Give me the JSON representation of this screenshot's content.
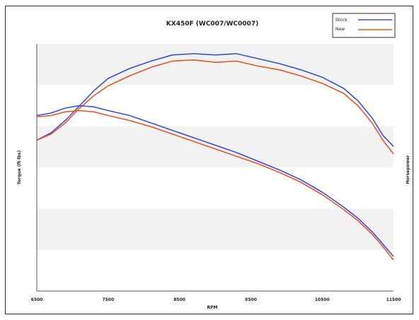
{
  "chart_data": {
    "type": "line",
    "title": "KX450F (WC007/WC0007)",
    "xlabel": "RPM",
    "ylabel_left": "Torque (ft-lbs)",
    "ylabel_right": "Horsepower",
    "x_ticks": [
      "6500",
      "7500",
      "8500",
      "9500",
      "10500",
      "11500"
    ],
    "xlim": [
      6500,
      11500
    ],
    "y_scale": "relative",
    "grid": "horizontal bands",
    "legend_position": "top-right",
    "colors": {
      "stock": "#3b4fd0",
      "new": "#e8542a"
    },
    "series": [
      {
        "name": "Stock",
        "kind": "power",
        "color": "#3b4fd0",
        "x": [
          6500,
          6700,
          6900,
          7100,
          7300,
          7500,
          7800,
          8100,
          8400,
          8700,
          9000,
          9300,
          9600,
          9900,
          10200,
          10500,
          10800,
          11000,
          11200,
          11350,
          11500
        ],
        "y": [
          0.61,
          0.64,
          0.69,
          0.75,
          0.81,
          0.86,
          0.9,
          0.93,
          0.955,
          0.96,
          0.955,
          0.96,
          0.94,
          0.92,
          0.895,
          0.865,
          0.82,
          0.77,
          0.7,
          0.63,
          0.585
        ]
      },
      {
        "name": "New",
        "kind": "power",
        "color": "#e8542a",
        "x": [
          6500,
          6700,
          6900,
          7100,
          7300,
          7500,
          7800,
          8100,
          8400,
          8700,
          9000,
          9300,
          9600,
          9900,
          10200,
          10500,
          10800,
          11000,
          11200,
          11350,
          11500
        ],
        "y": [
          0.61,
          0.635,
          0.68,
          0.74,
          0.79,
          0.83,
          0.87,
          0.905,
          0.93,
          0.935,
          0.925,
          0.93,
          0.91,
          0.895,
          0.87,
          0.84,
          0.8,
          0.75,
          0.68,
          0.61,
          0.555
        ]
      },
      {
        "name": "Stock",
        "kind": "torque",
        "color": "#3b4fd0",
        "x": [
          6500,
          6700,
          6900,
          7100,
          7300,
          7500,
          7800,
          8100,
          8400,
          8700,
          9000,
          9300,
          9600,
          9900,
          10200,
          10500,
          10800,
          11000,
          11200,
          11350,
          11500
        ],
        "y": [
          0.71,
          0.72,
          0.74,
          0.75,
          0.745,
          0.73,
          0.71,
          0.68,
          0.65,
          0.62,
          0.59,
          0.56,
          0.525,
          0.49,
          0.45,
          0.4,
          0.34,
          0.295,
          0.24,
          0.19,
          0.14
        ]
      },
      {
        "name": "New",
        "kind": "torque",
        "color": "#e8542a",
        "x": [
          6500,
          6700,
          6900,
          7100,
          7300,
          7500,
          7800,
          8100,
          8400,
          8700,
          9000,
          9300,
          9600,
          9900,
          10200,
          10500,
          10800,
          11000,
          11200,
          11350,
          11500
        ],
        "y": [
          0.705,
          0.71,
          0.725,
          0.73,
          0.725,
          0.71,
          0.69,
          0.665,
          0.635,
          0.605,
          0.575,
          0.545,
          0.515,
          0.48,
          0.44,
          0.39,
          0.33,
          0.285,
          0.23,
          0.18,
          0.125
        ]
      }
    ]
  }
}
